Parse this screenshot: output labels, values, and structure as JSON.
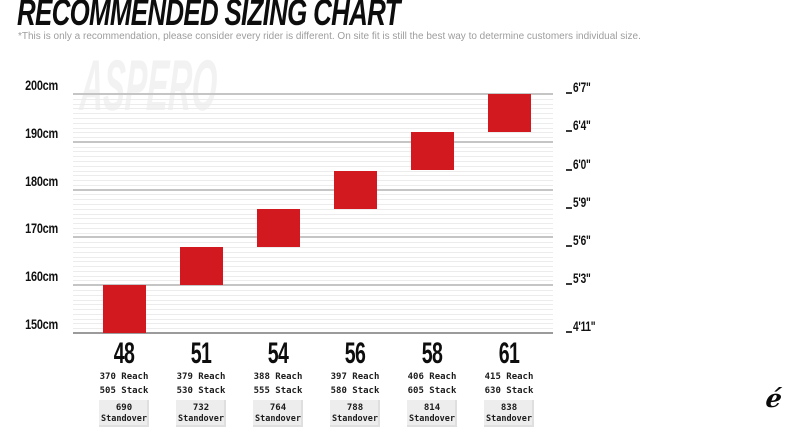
{
  "page": {
    "title": "RECOMMENDED SIZING CHART",
    "subtitle": "*This is only a recommendation, please consider every rider is different. On site fit is still the best way to determine customers individual size.",
    "watermark": "ASPERO",
    "brand_logo_glyph": "é"
  },
  "colors": {
    "bar_red": "#d2191f",
    "grid_minor": "#ececec",
    "grid_major": "#c5c5c5",
    "axis_line": "#9b9b9b",
    "standover_bg": "#ededed",
    "subtitle_gray": "#9d9d9d"
  },
  "chart_data": {
    "type": "bar",
    "title": "RECOMMENDED SIZING CHART",
    "orientation": "vertical range blocks (rider height vs frame size)",
    "grid": "minor line every 1cm, major line every 10cm",
    "y_axis_left": {
      "unit": "cm",
      "range_cm": [
        150,
        200
      ],
      "ticks": [
        "200cm",
        "190cm",
        "180cm",
        "170cm",
        "160cm",
        "150cm"
      ]
    },
    "y_axis_right": {
      "unit": "feet-inches",
      "ticks": [
        {
          "label": "6'7\"",
          "cm": 200
        },
        {
          "label": "6'4\"",
          "cm": 192
        },
        {
          "label": "6'0\"",
          "cm": 184
        },
        {
          "label": "5'9\"",
          "cm": 176
        },
        {
          "label": "5'6\"",
          "cm": 168
        },
        {
          "label": "5'3\"",
          "cm": 160
        },
        {
          "label": "4'11\"",
          "cm": 150
        }
      ]
    },
    "series_label_suffixes": {
      "reach": "Reach",
      "stack": "Stack",
      "standover": "Standover"
    },
    "sizes": [
      {
        "size": "48",
        "rider_height_cm": [
          150,
          160
        ],
        "reach": "370",
        "stack": "505",
        "standover": "690"
      },
      {
        "size": "51",
        "rider_height_cm": [
          160,
          168
        ],
        "reach": "379",
        "stack": "530",
        "standover": "732"
      },
      {
        "size": "54",
        "rider_height_cm": [
          168,
          176
        ],
        "reach": "388",
        "stack": "555",
        "standover": "764"
      },
      {
        "size": "56",
        "rider_height_cm": [
          176,
          184
        ],
        "reach": "397",
        "stack": "580",
        "standover": "788"
      },
      {
        "size": "58",
        "rider_height_cm": [
          184,
          192
        ],
        "reach": "406",
        "stack": "605",
        "standover": "814"
      },
      {
        "size": "61",
        "rider_height_cm": [
          192,
          200
        ],
        "reach": "415",
        "stack": "630",
        "standover": "838"
      }
    ]
  }
}
